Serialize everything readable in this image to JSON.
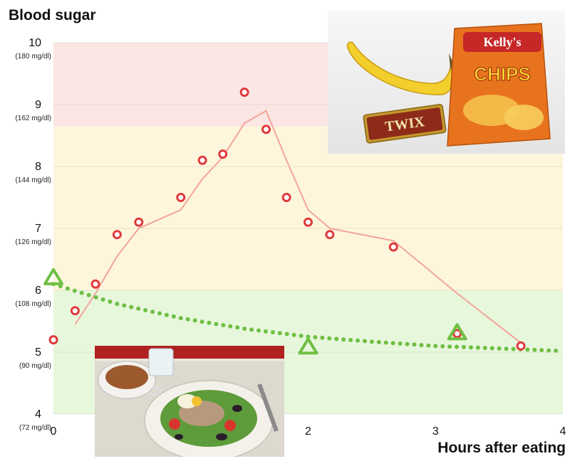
{
  "chart_data": {
    "type": "line",
    "title": "Blood sugar",
    "xlabel": "Hours after eating",
    "ylabel": "",
    "xlim": [
      0,
      4
    ],
    "ylim": [
      4,
      10
    ],
    "x_ticks": [
      "0",
      "2",
      "3",
      "4"
    ],
    "y_ticks": [
      {
        "value": 10,
        "label": "10",
        "sublabel": "(180 mg/dl)"
      },
      {
        "value": 9,
        "label": "9",
        "sublabel": "(162 mg/dl)"
      },
      {
        "value": 8,
        "label": "8",
        "sublabel": "(144 mg/dl)"
      },
      {
        "value": 7,
        "label": "7",
        "sublabel": "(126 mg/dl)"
      },
      {
        "value": 6,
        "label": "6",
        "sublabel": "(108 mg/dl)"
      },
      {
        "value": 5,
        "label": "5",
        "sublabel": "(90 mg/dl)"
      },
      {
        "value": 4,
        "label": "4",
        "sublabel": "(72 mg/dl)"
      }
    ],
    "bands": [
      {
        "from": 4,
        "to": 6,
        "color": "#e7f7dc"
      },
      {
        "from": 6,
        "to": 8.65,
        "color": "#fdf6dc"
      },
      {
        "from": 8.65,
        "to": 10,
        "color": "#fbe6e4"
      }
    ],
    "grid": true,
    "series": [
      {
        "style": "circles",
        "color": "#e0393c",
        "points": [
          [
            0.0,
            5.2
          ],
          [
            0.17,
            5.67
          ],
          [
            0.33,
            6.1
          ],
          [
            0.5,
            6.9
          ],
          [
            0.67,
            7.1
          ],
          [
            1.0,
            7.5
          ],
          [
            1.17,
            8.1
          ],
          [
            1.33,
            8.2
          ],
          [
            1.5,
            9.2
          ],
          [
            1.67,
            8.6
          ],
          [
            1.83,
            7.5
          ],
          [
            2.0,
            7.1
          ],
          [
            2.17,
            6.9
          ],
          [
            2.67,
            6.7
          ],
          [
            3.17,
            5.3
          ],
          [
            3.67,
            5.1
          ]
        ]
      },
      {
        "style": "line",
        "color": "#f2a59a",
        "points": [
          [
            0.17,
            5.45
          ],
          [
            0.33,
            5.95
          ],
          [
            0.5,
            6.55
          ],
          [
            0.67,
            7.0
          ],
          [
            1.0,
            7.3
          ],
          [
            1.17,
            7.8
          ],
          [
            1.33,
            8.15
          ],
          [
            1.5,
            8.7
          ],
          [
            1.67,
            8.9
          ],
          [
            1.83,
            8.1
          ],
          [
            2.0,
            7.3
          ],
          [
            2.17,
            7.0
          ],
          [
            2.67,
            6.8
          ],
          [
            3.17,
            5.95
          ],
          [
            3.67,
            5.15
          ]
        ]
      },
      {
        "style": "dotted",
        "color": "#6fbf44",
        "points": [
          [
            0.0,
            6.1
          ],
          [
            0.5,
            5.78
          ],
          [
            1.0,
            5.55
          ],
          [
            1.5,
            5.38
          ],
          [
            2.0,
            5.25
          ],
          [
            2.5,
            5.17
          ],
          [
            3.0,
            5.1
          ],
          [
            3.5,
            5.06
          ],
          [
            4.0,
            5.02
          ]
        ]
      },
      {
        "style": "triangles",
        "color": "#6fbf44",
        "points": [
          [
            0.0,
            6.22
          ],
          [
            2.0,
            5.1
          ],
          [
            3.17,
            5.33
          ]
        ]
      }
    ]
  },
  "photos": {
    "snacks": {
      "brand": "Kelly's",
      "label": "CHIPS",
      "bar": "TWIX"
    },
    "salad": {}
  },
  "colors": {
    "axis": "#cfcfcf",
    "snack_bag": "#e8731e",
    "banana": "#f2cf2c",
    "twix": "#c2972d",
    "plate": "#f4f1ea"
  }
}
